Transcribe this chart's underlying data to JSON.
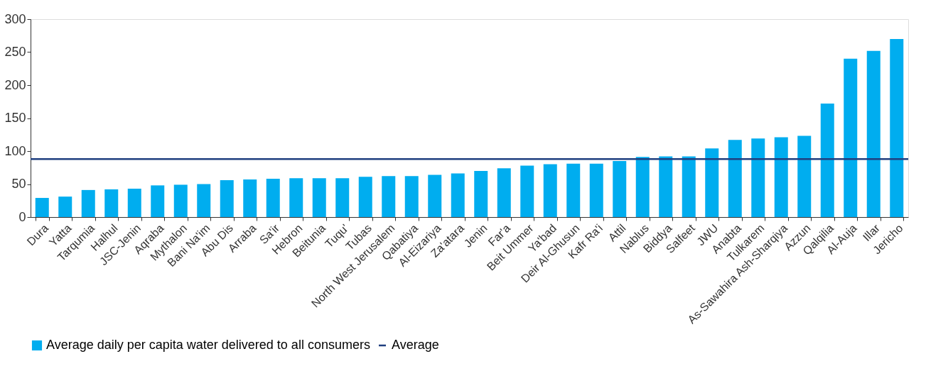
{
  "chart_data": {
    "type": "bar",
    "categories": [
      "Dura",
      "Yatta",
      "Tarqumia",
      "Halhul",
      "JSC-Jenin",
      "Aqraba",
      "Mythalon",
      "Bani Na'im",
      "Abu Dis",
      "Arraba",
      "Sa'ir",
      "Hebron",
      "Beitunia",
      "Tuqu'",
      "Tubas",
      "North West Jerusalem",
      "Qabatiya",
      "Al-Eizariya",
      "Za'atara",
      "Jenin",
      "Far'a",
      "Beit Ummer",
      "Ya'bad",
      "Deir Al-Ghusun",
      "Kafr Ra'i",
      "Attil",
      "Nablus",
      "Biddya",
      "Salfeet",
      "JWU",
      "Anabta",
      "Tulkarem",
      "As-Sawahira Ash-Sharqiya",
      "Azzun",
      "Qalqilia",
      "Al-Auja",
      "Illar",
      "Jericho"
    ],
    "series": [
      {
        "name": "Average daily per capita water delivered to all consumers",
        "color": "#00adef",
        "values": [
          29,
          31,
          41,
          42,
          43,
          48,
          49,
          50,
          56,
          57,
          58,
          59,
          59,
          59,
          61,
          62,
          62,
          64,
          66,
          70,
          74,
          78,
          80,
          81,
          81,
          85,
          91,
          92,
          92,
          104,
          117,
          119,
          121,
          123,
          172,
          240,
          252,
          270
        ]
      }
    ],
    "ref_lines": [
      {
        "axis": "y",
        "value": 88,
        "label": "Average",
        "color": "#1f3f7f",
        "line_style": "solid"
      }
    ],
    "ylim": [
      0,
      300
    ],
    "yticks": [
      0,
      50,
      100,
      150,
      200,
      250,
      300
    ],
    "grid": false,
    "legend": "bottom"
  }
}
